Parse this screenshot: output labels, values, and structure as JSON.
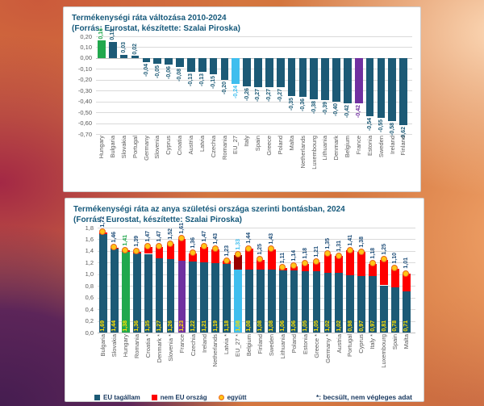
{
  "colors": {
    "bar_default": "#1C5A76",
    "hungary_green": "#21A84D",
    "eu27_light_blue": "#3FBEEE",
    "france_purple": "#7030A0",
    "non_eu_red": "#FE0000",
    "eu27_non_eu_dark_red": "#990000",
    "marker_yellow": "#FFC516",
    "marker_border_orange": "#E8641B",
    "in_bar_text_yellow": "#FFE100",
    "title_blue": "#16597B",
    "value_text_blue": "#1F4E79",
    "axis_text_gray": "#595959",
    "gridline_gray": "#DADADA",
    "legend_text_navy": "#17375E"
  },
  "chart_data": [
    {
      "type": "bar",
      "title": "Termékenységi ráta változása 2010-2024",
      "subtitle": "(Forrás: Eurostat, készítette: Szalai Piroska)",
      "categories": [
        "Hungary",
        "Bulgaria",
        "Slovakia",
        "Portugal",
        "Germany",
        "Slovenia",
        "Cyprus",
        "Croatia",
        "Austria",
        "Latvia",
        "Czechia",
        "Romania",
        "EU_27",
        "Italy",
        "Spain",
        "Greece",
        "Poland",
        "Malta",
        "Netherlands",
        "Luxembourg",
        "Lithuania",
        "Denmark",
        "Belgium",
        "France",
        "Estonia",
        "Sweden",
        "Ireland",
        "Finland"
      ],
      "values": [
        0.16,
        0.15,
        0.03,
        0.02,
        -0.04,
        -0.05,
        -0.06,
        -0.08,
        -0.13,
        -0.13,
        -0.15,
        -0.2,
        -0.24,
        -0.26,
        -0.27,
        -0.27,
        -0.27,
        -0.35,
        -0.36,
        -0.38,
        -0.39,
        -0.4,
        -0.42,
        -0.42,
        -0.54,
        -0.55,
        -0.58,
        -0.62
      ],
      "value_labels": [
        "0,16",
        "0,15",
        "0,03",
        "0,02",
        "-0,04",
        "-0,05",
        "-0,06",
        "-0,08",
        "-0,13",
        "-0,13",
        "-0,15",
        "-0,20",
        "-0,24",
        "-0,26",
        "-0,27",
        "-0,27",
        "-0,27",
        "-0,35",
        "-0,36",
        "-0,38",
        "-0,39",
        "-0,40",
        "-0,42",
        "-0,42",
        "-0,54",
        "-0,55",
        "-0,58",
        "-0,62"
      ],
      "bar_colors": [
        "#21A84D",
        "#1C5A76",
        "#1C5A76",
        "#1C5A76",
        "#1C5A76",
        "#1C5A76",
        "#1C5A76",
        "#1C5A76",
        "#1C5A76",
        "#1C5A76",
        "#1C5A76",
        "#1C5A76",
        "#3FBEEE",
        "#1C5A76",
        "#1C5A76",
        "#1C5A76",
        "#1C5A76",
        "#1C5A76",
        "#1C5A76",
        "#1C5A76",
        "#1C5A76",
        "#1C5A76",
        "#1C5A76",
        "#7030A0",
        "#1C5A76",
        "#1C5A76",
        "#1C5A76",
        "#1C5A76"
      ],
      "highlights": {
        "Hungary": "#21A84D",
        "EU_27": "#3FBEEE",
        "France": "#7030A0"
      },
      "ylim": [
        -0.7,
        0.2
      ],
      "yticks": [
        0.2,
        0.1,
        0.0,
        -0.1,
        -0.2,
        -0.3,
        -0.4,
        -0.5,
        -0.6,
        -0.7
      ],
      "ytick_labels": [
        "0,20",
        "0,10",
        "0,00",
        "-0,10",
        "-0,20",
        "-0,30",
        "-0,40",
        "-0,50",
        "-0,60",
        "-0,70"
      ],
      "grid": true,
      "legend_position": "none"
    },
    {
      "type": "stacked-bar",
      "title": "Termékenységi ráta az anya születési országa szerinti bontásban, 2024",
      "subtitle": "(Forrás: Eurostat, készítette: Szalai Piroska)",
      "categories": [
        "Bulgaria",
        "Slovakia",
        "Hungary",
        "Romania",
        "Croatia *",
        "Denmark *",
        "Slovenia *",
        "France",
        "Czechia",
        "Ireland",
        "Netherlands",
        "Latvia *",
        "EU_27 *",
        "Belgium",
        "Finland",
        "Sweden",
        "Lithuania",
        "Poland",
        "Estonia",
        "Greece *",
        "Germany *",
        "Austria",
        "Portugal",
        "Cyprus",
        "Italy *",
        "Luxembourg",
        "Spain",
        "Malta"
      ],
      "series": [
        {
          "name": "EU tagállam",
          "values": [
            1.69,
            1.44,
            1.38,
            1.36,
            1.35,
            1.27,
            1.26,
            1.23,
            1.22,
            1.21,
            1.19,
            1.18,
            1.08,
            1.08,
            1.08,
            1.08,
            1.06,
            1.06,
            1.05,
            1.05,
            1.02,
            1.02,
            0.98,
            0.97,
            0.97,
            0.81,
            0.78,
            0.71
          ],
          "value_labels": [
            "1,69",
            "1,44",
            "1,38",
            "1,36",
            "1,35",
            "1,27",
            "1,26",
            "1,23",
            "1,22",
            "1,21",
            "1,19",
            "1,18",
            "1,08",
            "1,08",
            "1,08",
            "1,08",
            "1,06",
            "1,06",
            "1,05",
            "1,05",
            "1,02",
            "1,02",
            "0,98",
            "0,97",
            "0,97",
            "0,81",
            "0,78",
            "0,71"
          ],
          "colors": [
            "#1C5A76",
            "#1C5A76",
            "#21A84D",
            "#1C5A76",
            "#1C5A76",
            "#1C5A76",
            "#1C5A76",
            "#7030A0",
            "#1C5A76",
            "#1C5A76",
            "#1C5A76",
            "#1C5A76",
            "#3FBEEE",
            "#1C5A76",
            "#1C5A76",
            "#1C5A76",
            "#1C5A76",
            "#1C5A76",
            "#1C5A76",
            "#1C5A76",
            "#1C5A76",
            "#1C5A76",
            "#1C5A76",
            "#1C5A76",
            "#1C5A76",
            "#1C5A76",
            "#1C5A76",
            "#1C5A76"
          ]
        },
        {
          "name": "nem EU ország",
          "note": "segment height = együtt minus EU tagállam",
          "values": [
            0.03,
            0.02,
            0.03,
            0.03,
            0.12,
            0.2,
            0.26,
            0.38,
            0.14,
            0.26,
            0.24,
            0.05,
            0.25,
            0.36,
            0.17,
            0.35,
            0.05,
            0.08,
            0.13,
            0.16,
            0.33,
            0.29,
            0.43,
            0.41,
            0.21,
            0.44,
            0.32,
            0.3
          ],
          "colors": [
            "#FE0000",
            "#FE0000",
            "#FE0000",
            "#FE0000",
            "#FE0000",
            "#FE0000",
            "#FE0000",
            "#FE0000",
            "#FE0000",
            "#FE0000",
            "#FE0000",
            "#FE0000",
            "#990000",
            "#FE0000",
            "#FE0000",
            "#FE0000",
            "#FE0000",
            "#FE0000",
            "#FE0000",
            "#FE0000",
            "#FE0000",
            "#FE0000",
            "#FE0000",
            "#FE0000",
            "#FE0000",
            "#FE0000",
            "#FE0000",
            "#FE0000"
          ]
        },
        {
          "name": "együtt",
          "marker": "circle",
          "values": [
            1.72,
            1.46,
            1.41,
            1.39,
            1.47,
            1.47,
            1.52,
            1.61,
            1.36,
            1.47,
            1.43,
            1.23,
            1.33,
            1.44,
            1.25,
            1.43,
            1.11,
            1.14,
            1.18,
            1.21,
            1.35,
            1.31,
            1.41,
            1.38,
            1.18,
            1.25,
            1.1,
            1.01
          ],
          "value_labels": [
            "1,72",
            "1,46",
            "1,41",
            "1,39",
            "1,47",
            "1,47",
            "1,52",
            "1,61",
            "1,36",
            "1,47",
            "1,43",
            "1,23",
            "1,33",
            "1,44",
            "1,25",
            "1,43",
            "1,11",
            "1,14",
            "1,18",
            "1,21",
            "1,35",
            "1,31",
            "1,41",
            "1,38",
            "1,18",
            "1,25",
            "1,10",
            "1,01"
          ]
        }
      ],
      "total_label_colors": [
        "#1F4E79",
        "#1F4E79",
        "#21A84D",
        "#1F4E79",
        "#1F4E79",
        "#1F4E79",
        "#1F4E79",
        "#1F4E79",
        "#1F4E79",
        "#1F4E79",
        "#1F4E79",
        "#1F4E79",
        "#3FBEEE",
        "#1F4E79",
        "#1F4E79",
        "#1F4E79",
        "#1F4E79",
        "#1F4E79",
        "#1F4E79",
        "#1F4E79",
        "#1F4E79",
        "#1F4E79",
        "#1F4E79",
        "#1F4E79",
        "#1F4E79",
        "#1F4E79",
        "#1F4E79",
        "#1F4E79"
      ],
      "ylim": [
        0,
        1.8
      ],
      "yticks": [
        1.8,
        1.6,
        1.4,
        1.2,
        1.0,
        0.8,
        0.6,
        0.4,
        0.2,
        0.0
      ],
      "ytick_labels": [
        "1,8",
        "1,6",
        "1,4",
        "1,2",
        "1,0",
        "0,8",
        "0,6",
        "0,4",
        "0,2",
        "0,0"
      ],
      "grid": true,
      "legend": [
        "EU tagállam",
        "nem EU ország",
        "együtt"
      ],
      "legend_position": "bottom-left",
      "footnote": "*: becsült, nem végleges adat"
    }
  ]
}
